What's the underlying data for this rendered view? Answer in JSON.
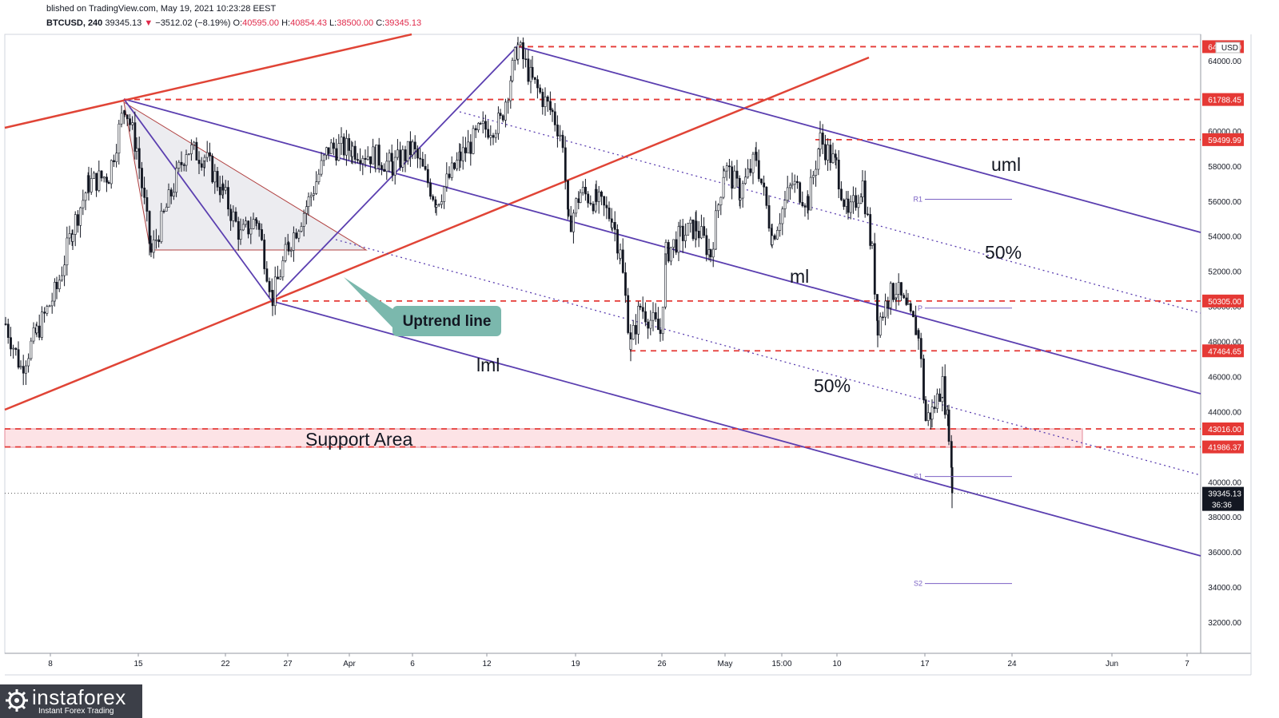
{
  "header": {
    "published": "blished on TradingView.com, May 19, 2021 10:23:28 EEST",
    "symbol": "BTCUSD, 240",
    "last": "39345.13",
    "arrow": "▼",
    "change": "−3512.02 (−8.19%)",
    "o_label": "O:",
    "o_value": "40595.00",
    "h_label": "H:",
    "h_value": "40854.43",
    "l_label": "L:",
    "l_value": "38500.00",
    "c_label": "C:",
    "c_value": "39345.13"
  },
  "chart_data": {
    "type": "candlestick",
    "title": "BTCUSD, 240",
    "currency": "USD",
    "ylim": [
      30000,
      66000
    ],
    "y_ticks": [
      32000,
      34000,
      36000,
      38000,
      40000,
      42000,
      44000,
      46000,
      48000,
      50000,
      52000,
      54000,
      56000,
      58000,
      60000,
      62000,
      64000
    ],
    "y_tick_labels": [
      "32000.00",
      "34000.00",
      "36000.00",
      "38000.00",
      "40000.00",
      "42000.00",
      "44000.00",
      "46000.00",
      "48000.00",
      "50000.00",
      "52000.00",
      "54000.00",
      "56000.00",
      "58000.00",
      "60000.00",
      "62000.00",
      "64000.00"
    ],
    "x_tick_labels": [
      "8",
      "15",
      "22",
      "27",
      "Apr",
      "6",
      "12",
      "19",
      "26",
      "May",
      "15:00",
      "10",
      "17",
      "24",
      "Jun",
      "7"
    ],
    "price_levels": [
      {
        "value": 64800,
        "label": "64800.00"
      },
      {
        "value": 61788.45,
        "label": "61788.45"
      },
      {
        "value": 59499.99,
        "label": "59499.99"
      },
      {
        "value": 50305.0,
        "label": "50305.00"
      },
      {
        "value": 47464.65,
        "label": "47464.65"
      },
      {
        "value": 43016.0,
        "label": "43016.00"
      },
      {
        "value": 41986.37,
        "label": "41986.37"
      }
    ],
    "current_price": {
      "value": 39345.13,
      "label": "39345.13",
      "countdown": "36:36"
    },
    "pivots": [
      {
        "name": "R1",
        "value": 56100
      },
      {
        "name": "P",
        "value": 49900
      },
      {
        "name": "S1",
        "value": 40300
      },
      {
        "name": "S2",
        "value": 34200
      }
    ],
    "annotations": [
      "Support Area",
      "Uptrend line",
      "uml",
      "ml",
      "lml",
      "50%",
      "50%"
    ],
    "key_prices": [
      {
        "date": "Mar 14",
        "value": 61788.45
      },
      {
        "date": "Mar 25",
        "value": 50305.0
      },
      {
        "date": "Apr 14",
        "value": 64800
      },
      {
        "date": "Apr 23",
        "value": 47464.65
      },
      {
        "date": "May 9",
        "value": 59499.99
      },
      {
        "date": "May 17",
        "value": 43016.0
      },
      {
        "date": "May 19",
        "value": 39345.13
      }
    ],
    "grid": false,
    "colors": {
      "up": "#131722",
      "down": "#131722",
      "levels": "#e53935",
      "pitchfork": "#5b3fb0",
      "support_fill": "#fde3e6",
      "label_bg": "#e53935"
    }
  },
  "watermark": {
    "name": "instaforex",
    "subtitle": "Instant Forex Trading"
  }
}
